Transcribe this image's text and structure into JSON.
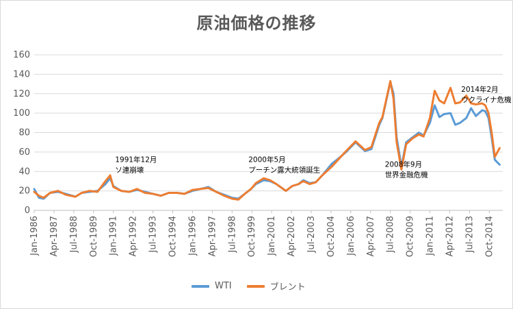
{
  "chart_data": {
    "type": "line",
    "title": "原油価格の推移",
    "ylim": [
      0,
      160
    ],
    "yticks": [
      0,
      20,
      40,
      60,
      80,
      100,
      120,
      140,
      160
    ],
    "categories": [
      "Jan-1986",
      "Apr-1987",
      "Jul-1988",
      "Oct-1989",
      "Jan-1991",
      "Apr-1992",
      "Jul-1993",
      "Oct-1994",
      "Jan-1996",
      "Apr-1997",
      "Jul-1998",
      "Oct-1999",
      "Jan-2001",
      "Apr-2002",
      "Jul-2003",
      "Oct-2004",
      "Jan-2006",
      "Apr-2007",
      "Jul-2008",
      "Oct-2009",
      "Jan-2011",
      "Apr-2012",
      "Jul-2013",
      "Oct-2014"
    ],
    "grid": true,
    "legend_position": "bottom",
    "series": [
      {
        "name": "WTI",
        "color": "#5b9bd5",
        "x": [
          1986.0,
          1986.3,
          1986.6,
          1987.0,
          1987.5,
          1988.0,
          1988.6,
          1989.0,
          1989.5,
          1990.0,
          1990.5,
          1990.8,
          1991.0,
          1991.5,
          1992.0,
          1992.5,
          1993.0,
          1993.5,
          1994.0,
          1994.5,
          1995.0,
          1995.5,
          1996.0,
          1996.5,
          1997.0,
          1997.5,
          1998.0,
          1998.5,
          1998.9,
          1999.3,
          1999.7,
          2000.0,
          2000.5,
          2000.9,
          2001.3,
          2001.9,
          2002.3,
          2002.7,
          2003.0,
          2003.4,
          2003.8,
          2004.2,
          2004.8,
          2005.2,
          2005.7,
          2006.3,
          2006.9,
          2007.3,
          2007.8,
          2008.0,
          2008.5,
          2008.7,
          2008.9,
          2009.2,
          2009.5,
          2009.9,
          2010.3,
          2010.6,
          2011.0,
          2011.3,
          2011.6,
          2011.9,
          2012.3,
          2012.6,
          2012.9,
          2013.3,
          2013.6,
          2013.9,
          2014.3,
          2014.5,
          2014.7,
          2014.9,
          2015.1,
          2015.4
        ],
        "y": [
          22,
          13,
          12,
          18,
          19,
          17,
          14,
          18,
          19,
          20,
          27,
          33,
          25,
          20,
          19,
          21,
          19,
          17,
          15,
          18,
          18,
          17,
          20,
          22,
          24,
          19,
          16,
          13,
          12,
          17,
          22,
          27,
          31,
          30,
          27,
          20,
          25,
          27,
          31,
          28,
          29,
          36,
          48,
          53,
          60,
          70,
          61,
          63,
          88,
          95,
          132,
          120,
          75,
          45,
          70,
          75,
          80,
          77,
          90,
          108,
          96,
          99,
          100,
          88,
          90,
          95,
          105,
          97,
          103,
          102,
          95,
          75,
          52,
          47
        ]
      },
      {
        "name": "ブレント",
        "color": "#ed7d31",
        "x": [
          1986.0,
          1986.3,
          1986.6,
          1987.0,
          1987.5,
          1988.0,
          1988.6,
          1989.0,
          1989.5,
          1990.0,
          1990.5,
          1990.8,
          1991.0,
          1991.5,
          1992.0,
          1992.5,
          1993.0,
          1993.5,
          1994.0,
          1994.5,
          1995.0,
          1995.5,
          1996.0,
          1996.5,
          1997.0,
          1997.5,
          1998.0,
          1998.5,
          1998.9,
          1999.3,
          1999.7,
          2000.0,
          2000.5,
          2000.9,
          2001.3,
          2001.9,
          2002.3,
          2002.7,
          2003.0,
          2003.4,
          2003.8,
          2004.2,
          2004.8,
          2005.2,
          2005.7,
          2006.3,
          2006.9,
          2007.3,
          2007.8,
          2008.0,
          2008.5,
          2008.7,
          2008.9,
          2009.2,
          2009.5,
          2009.9,
          2010.3,
          2010.6,
          2011.0,
          2011.3,
          2011.6,
          2011.9,
          2012.3,
          2012.6,
          2012.9,
          2013.3,
          2013.6,
          2013.9,
          2014.3,
          2014.5,
          2014.7,
          2014.9,
          2015.1,
          2015.4
        ],
        "y": [
          19,
          15,
          13,
          18,
          20,
          16,
          14,
          18,
          20,
          19,
          30,
          36,
          24,
          20,
          19,
          22,
          18,
          17,
          15,
          18,
          18,
          17,
          21,
          22,
          23,
          19,
          15,
          12,
          11,
          17,
          22,
          28,
          33,
          31,
          27,
          20,
          25,
          27,
          30,
          27,
          29,
          36,
          45,
          52,
          61,
          71,
          62,
          65,
          90,
          96,
          133,
          115,
          70,
          42,
          68,
          74,
          78,
          76,
          95,
          123,
          113,
          110,
          126,
          110,
          111,
          118,
          110,
          109,
          110,
          108,
          100,
          80,
          55,
          64
        ]
      }
    ],
    "annotations": [
      {
        "year": 1991.2,
        "value": 40,
        "lines": [
          "1991年12月",
          "ソ連崩壊"
        ]
      },
      {
        "year": 2000.4,
        "value": 40,
        "lines": [
          "2000年5月",
          "プーチン露大統領誕生"
        ]
      },
      {
        "year": 2008.5,
        "value": 35,
        "lines": [
          "2008年9月",
          "世界金融危機"
        ]
      },
      {
        "year": 2014.1,
        "value": 112,
        "lines": [
          "2014年2月",
          "ウクライナ危機"
        ]
      }
    ]
  }
}
